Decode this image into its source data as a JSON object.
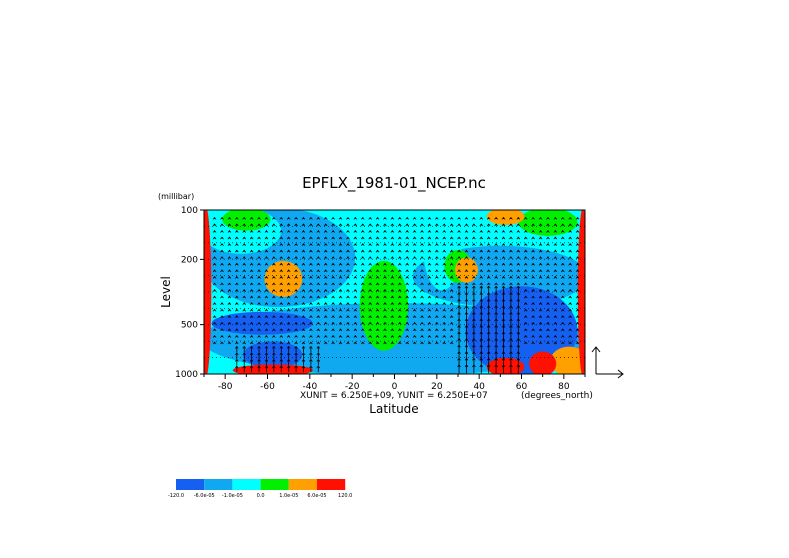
{
  "chart_data": {
    "type": "heatmap",
    "title": "EPFLX_1981-01_NCEP.nc",
    "xlabel": "Latitude",
    "ylabel": "Level",
    "y_unit": "(millibar)",
    "x_unit": "(degrees_north)",
    "xlim": [
      -90,
      90
    ],
    "ylim": [
      1000,
      100
    ],
    "y_scale": "log",
    "x_ticks": [
      -80,
      -60,
      -40,
      -20,
      0,
      20,
      40,
      60,
      80
    ],
    "y_ticks": [
      100,
      200,
      500,
      1000
    ],
    "vector_scale_note": "XUNIT = 6.250E+09, YUNIT = 6.250E+07",
    "legend": {
      "position": "bottom-left",
      "colors": [
        "#1560f0",
        "#10a8f0",
        "#00ffff",
        "#00f000",
        "#ffa000",
        "#ff1000"
      ],
      "labels": [
        "-120.0",
        "-6.0e-05",
        "-1.0e-05",
        "0.0",
        "1.0e-05",
        "6.0e-05",
        "120.0"
      ]
    },
    "contour_fields": [
      {
        "level": "-6.0e-05 to -1.0e-05",
        "color": "#10a8f0",
        "regions": [
          {
            "lat": [
              -90,
              90
            ],
            "p": [
              380,
              1000
            ]
          },
          {
            "lat": [
              -90,
              -20
            ],
            "p": [
              100,
              380
            ]
          },
          {
            "lat": [
              10,
              90
            ],
            "p": [
              170,
              380
            ]
          }
        ]
      },
      {
        "level": "-120.0 to -6.0e-05",
        "color": "#1560f0",
        "regions": [
          {
            "lat": [
              35,
              85
            ],
            "p": [
              300,
              1000
            ]
          },
          {
            "lat": [
              -85,
              -40
            ],
            "p": [
              430,
              560
            ]
          },
          {
            "lat": [
              -70,
              -45
            ],
            "p": [
              650,
              900
            ]
          }
        ]
      },
      {
        "level": "-1.0e-05 to 0.0",
        "color": "#00ffff",
        "regions": [
          {
            "lat": [
              -15,
              5
            ],
            "p": [
              100,
              700
            ]
          },
          {
            "lat": [
              15,
              30
            ],
            "p": [
              100,
              300
            ]
          },
          {
            "lat": [
              -90,
              -55
            ],
            "p": [
              100,
              180
            ]
          }
        ]
      },
      {
        "level": "0.0 to 1.0e-05",
        "color": "#00f000",
        "regions": [
          {
            "lat": [
              -15,
              5
            ],
            "p": [
              210,
              700
            ]
          },
          {
            "lat": [
              -80,
              -60
            ],
            "p": [
              100,
              130
            ]
          },
          {
            "lat": [
              60,
              85
            ],
            "p": [
              100,
              140
            ]
          },
          {
            "lat": [
              25,
              35
            ],
            "p": [
              180,
              270
            ]
          }
        ]
      },
      {
        "level": "1.0e-05 to 6.0e-05",
        "color": "#ffa000",
        "regions": [
          {
            "lat": [
              -60,
              -45
            ],
            "p": [
              210,
              330
            ]
          },
          {
            "lat": [
              30,
              38
            ],
            "p": [
              200,
              270
            ]
          },
          {
            "lat": [
              45,
              60
            ],
            "p": [
              100,
              120
            ]
          },
          {
            "lat": [
              75,
              90
            ],
            "p": [
              700,
              1000
            ]
          }
        ]
      },
      {
        "level": "6.0e-05 to 120.0",
        "color": "#ff1000",
        "regions": [
          {
            "lat": [
              -90,
              -88
            ],
            "p": [
              100,
              1000
            ]
          },
          {
            "lat": [
              88,
              90
            ],
            "p": [
              100,
              1000
            ]
          },
          {
            "lat": [
              -75,
              -40
            ],
            "p": [
              900,
              1000
            ]
          },
          {
            "lat": [
              45,
              60
            ],
            "p": [
              820,
              1000
            ]
          },
          {
            "lat": [
              65,
              75
            ],
            "p": [
              750,
              1000
            ]
          }
        ]
      }
    ],
    "vector_field": {
      "description": "EP flux arrows, mostly upward",
      "regions": [
        {
          "lat": [
            -75,
            -35
          ],
          "p": [
            700,
            1000
          ],
          "magnitude": 1.0
        },
        {
          "lat": [
            30,
            60
          ],
          "p": [
            300,
            1000
          ],
          "magnitude": 1.4
        },
        {
          "lat": [
            -90,
            90
          ],
          "p": [
            100,
            700
          ],
          "magnitude": 0.25
        }
      ]
    },
    "grid": true
  }
}
